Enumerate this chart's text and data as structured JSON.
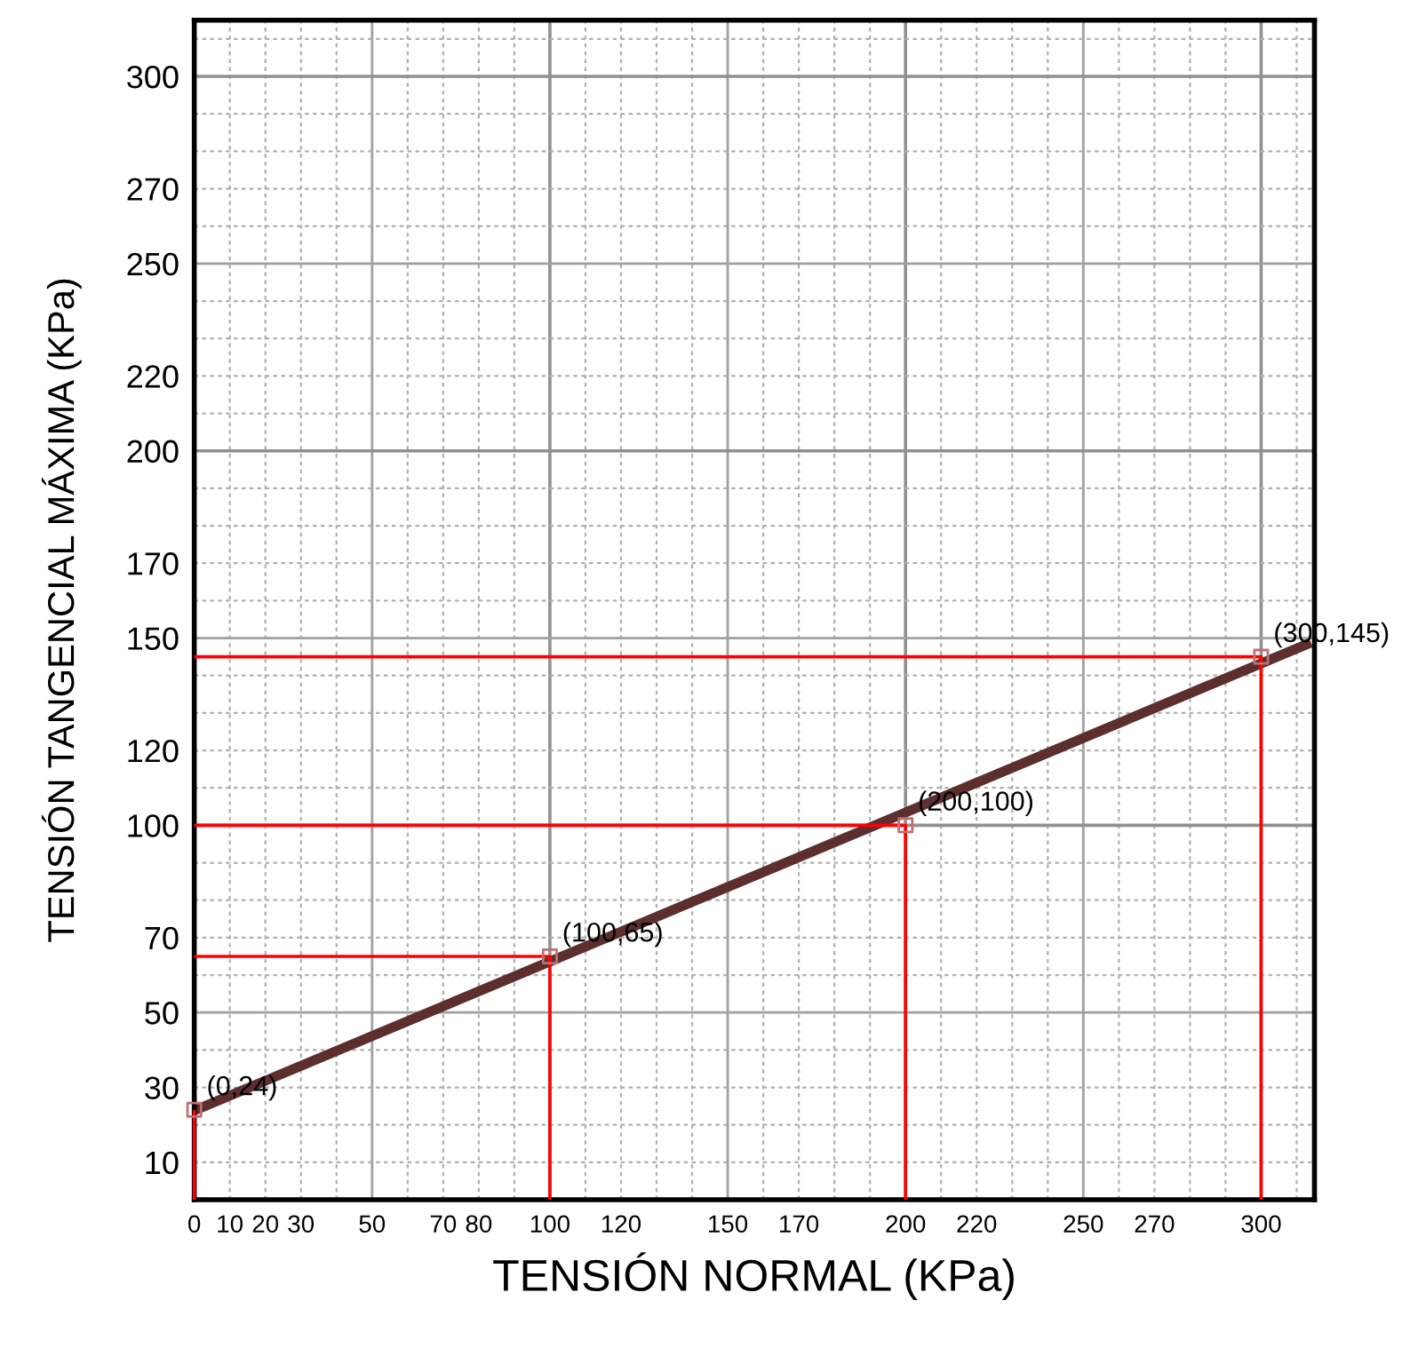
{
  "chart_data": {
    "type": "scatter",
    "xlabel": "TENSIÓN NORMAL (KPa)",
    "ylabel": "TENSIÓN TANGENCIAL MÁXIMA (KPa)",
    "xlim": [
      0,
      315
    ],
    "ylim": [
      0,
      315
    ],
    "xticks": [
      0,
      10,
      20,
      30,
      {
        "value": 40,
        "label": null
      },
      50,
      {
        "value": 60,
        "label": null
      },
      70,
      80,
      {
        "value": 90,
        "label": null
      },
      100,
      {
        "value": 110,
        "label": null
      },
      120,
      {
        "value": 130,
        "label": null
      },
      {
        "value": 140,
        "label": null
      },
      150,
      {
        "value": 160,
        "label": null
      },
      170,
      {
        "value": 180,
        "label": null
      },
      {
        "value": 190,
        "label": null
      },
      200,
      {
        "value": 210,
        "label": null
      },
      220,
      {
        "value": 230,
        "label": null
      },
      {
        "value": 240,
        "label": null
      },
      250,
      {
        "value": 260,
        "label": null
      },
      270,
      {
        "value": 280,
        "label": null
      },
      {
        "value": 290,
        "label": null
      },
      300,
      {
        "value": 310,
        "label": null
      }
    ],
    "yticks": [
      {
        "value": 0,
        "label": null
      },
      10,
      {
        "value": 20,
        "label": null
      },
      30,
      {
        "value": 40,
        "label": null
      },
      50,
      {
        "value": 60,
        "label": null
      },
      70,
      {
        "value": 80,
        "label": null
      },
      {
        "value": 90,
        "label": null
      },
      100,
      {
        "value": 110,
        "label": null
      },
      120,
      {
        "value": 130,
        "label": null
      },
      {
        "value": 140,
        "label": null
      },
      150,
      {
        "value": 160,
        "label": null
      },
      170,
      {
        "value": 180,
        "label": null
      },
      {
        "value": 190,
        "label": null
      },
      200,
      {
        "value": 210,
        "label": null
      },
      220,
      {
        "value": 230,
        "label": null
      },
      {
        "value": 240,
        "label": null
      },
      250,
      {
        "value": 260,
        "label": null
      },
      270,
      {
        "value": 280,
        "label": null
      },
      {
        "value": 290,
        "label": null
      },
      300,
      {
        "value": 310,
        "label": null
      }
    ],
    "grid": true,
    "legend": false,
    "series": [
      {
        "type": "line",
        "color": "#ff0000",
        "x": [
          0,
          100,
          100
        ],
        "values": [
          65,
          65,
          0
        ],
        "marker": "none"
      },
      {
        "type": "line",
        "color": "#ff0000",
        "x": [
          0,
          200,
          200
        ],
        "values": [
          100,
          100,
          0
        ],
        "marker": "none"
      },
      {
        "type": "line",
        "color": "#ff0000",
        "x": [
          0,
          300,
          300
        ],
        "values": [
          145,
          145,
          0
        ],
        "marker": "none"
      },
      {
        "type": "line",
        "color": "#ff0000",
        "x": [
          0,
          0
        ],
        "values": [
          24,
          0
        ],
        "marker": "none"
      },
      {
        "type": "line",
        "color": "#5c2e2e",
        "x": [
          0,
          314
        ],
        "values": [
          23.8,
          148.8
        ],
        "marker": "none"
      },
      {
        "color": "#c07070",
        "x": [
          0,
          100,
          200,
          300
        ],
        "values": [
          24,
          65,
          100,
          145
        ],
        "marker": "square"
      }
    ],
    "annotations": [
      {
        "text": "(0,24)",
        "x": 0,
        "y": 24
      },
      {
        "text": "(100,65)",
        "x": 100,
        "y": 65
      },
      {
        "text": "(200,100)",
        "x": 200,
        "y": 100
      },
      {
        "text": "(300,145)",
        "x": 300,
        "y": 145
      }
    ]
  }
}
